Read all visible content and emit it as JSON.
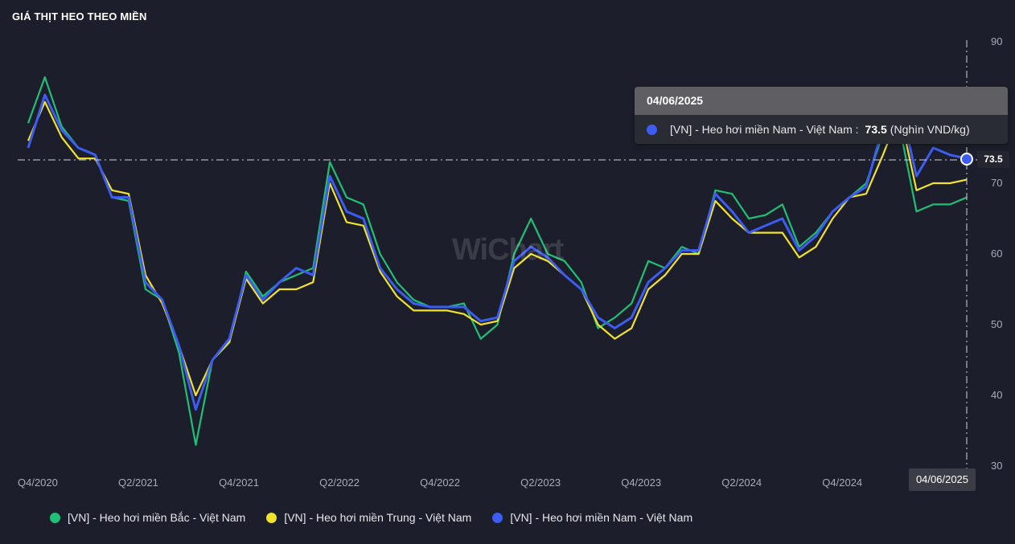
{
  "header": {
    "title": "GIÁ THỊT HEO THEO MIỀN"
  },
  "watermark": {
    "text": "WiChart"
  },
  "tooltip": {
    "date": "04/06/2025",
    "series_label": "[VN] - Heo hơi miền Nam - Việt Nam :",
    "value": "73.5",
    "unit": "(Nghìn VND/kg)"
  },
  "crosshair": {
    "value_label": "73.5",
    "date_label": "04/06/2025"
  },
  "colors": {
    "background": "#1c1f2b",
    "bac": "#1fbf75",
    "trung": "#f2e22c",
    "nam": "#3d5cf0"
  },
  "chart_data": {
    "type": "line",
    "title": "GIÁ THỊT HEO THEO MIỀN",
    "ylim": [
      30,
      90
    ],
    "y_ticks": [
      "30",
      "40",
      "50",
      "60",
      "70",
      "80",
      "90"
    ],
    "x_ticks": [
      "Q4/2020",
      "Q2/2021",
      "Q4/2021",
      "Q2/2022",
      "Q4/2022",
      "Q2/2023",
      "Q4/2023",
      "Q2/2024",
      "Q4/2024"
    ],
    "x": [
      "2020-10",
      "2020-11",
      "2020-12",
      "2021-01",
      "2021-02",
      "2021-03",
      "2021-04",
      "2021-05",
      "2021-06",
      "2021-07",
      "2021-08",
      "2021-09",
      "2021-10",
      "2021-11",
      "2021-12",
      "2022-01",
      "2022-02",
      "2022-03",
      "2022-04",
      "2022-05",
      "2022-06",
      "2022-07",
      "2022-08",
      "2022-09",
      "2022-10",
      "2022-11",
      "2022-12",
      "2023-01",
      "2023-02",
      "2023-03",
      "2023-04",
      "2023-05",
      "2023-06",
      "2023-07",
      "2023-08",
      "2023-09",
      "2023-10",
      "2023-11",
      "2023-12",
      "2024-01",
      "2024-02",
      "2024-03",
      "2024-04",
      "2024-05",
      "2024-06",
      "2024-07",
      "2024-08",
      "2024-09",
      "2024-10",
      "2024-11",
      "2024-12",
      "2025-01",
      "2025-02",
      "2025-03",
      "2025-04",
      "2025-05",
      "2025-06"
    ],
    "grid": false,
    "legend_position": "bottom-left",
    "series": [
      {
        "name": "[VN] - Heo hơi miền Bắc - Việt Nam",
        "color": "#1fbf75",
        "values": [
          78.5,
          85,
          78,
          75,
          74,
          68,
          67.5,
          55,
          53.5,
          46,
          33,
          45,
          47.5,
          57.5,
          54,
          56,
          57,
          58,
          73,
          68,
          67,
          60,
          56,
          53.5,
          52.5,
          52.5,
          53,
          48,
          50,
          60,
          65,
          60,
          59,
          56,
          49.5,
          51,
          53,
          59,
          58,
          61,
          60,
          69,
          68.5,
          65,
          65.5,
          67,
          61,
          63,
          66,
          68,
          70,
          77,
          78,
          66,
          67,
          67,
          68
        ]
      },
      {
        "name": "[VN] - Heo hơi miền Trung - Việt Nam",
        "color": "#f2e22c",
        "values": [
          76,
          81.5,
          76.5,
          73.5,
          73.5,
          69,
          68.5,
          57,
          53,
          47,
          40,
          45,
          47.5,
          56.5,
          53,
          55,
          55,
          56,
          70,
          64.5,
          64,
          57.5,
          54,
          52,
          52,
          52,
          51.5,
          50,
          50.5,
          58,
          60,
          59,
          57,
          55,
          50,
          48,
          49.5,
          55,
          57,
          60,
          60,
          67.5,
          65,
          63,
          63,
          63,
          59.5,
          61,
          65,
          68,
          68.5,
          74,
          80,
          69,
          70,
          70,
          70.5
        ]
      },
      {
        "name": "[VN] - Heo hơi miền Nam - Việt Nam",
        "color": "#3d5cf0",
        "values": [
          75,
          82.5,
          77.5,
          75,
          74,
          68,
          68,
          56,
          53.5,
          47,
          38,
          45,
          48,
          57,
          53.5,
          56,
          58,
          57,
          71,
          66,
          65,
          58,
          55,
          53,
          52.5,
          52.5,
          52.5,
          50.5,
          51,
          59,
          61,
          59.5,
          57,
          55,
          51,
          49.5,
          51,
          56,
          58,
          60.5,
          60.5,
          68.5,
          66,
          63,
          64,
          65,
          60.5,
          62.5,
          66,
          68,
          69.5,
          78,
          81.5,
          71,
          75,
          74,
          73.5
        ]
      }
    ]
  },
  "legend": {
    "items": [
      {
        "label": "[VN] - Heo hơi miền Bắc - Việt Nam",
        "color": "#1fbf75"
      },
      {
        "label": "[VN] - Heo hơi miền Trung - Việt Nam",
        "color": "#f2e22c"
      },
      {
        "label": "[VN] - Heo hơi miền Nam - Việt Nam",
        "color": "#3d5cf0"
      }
    ]
  }
}
